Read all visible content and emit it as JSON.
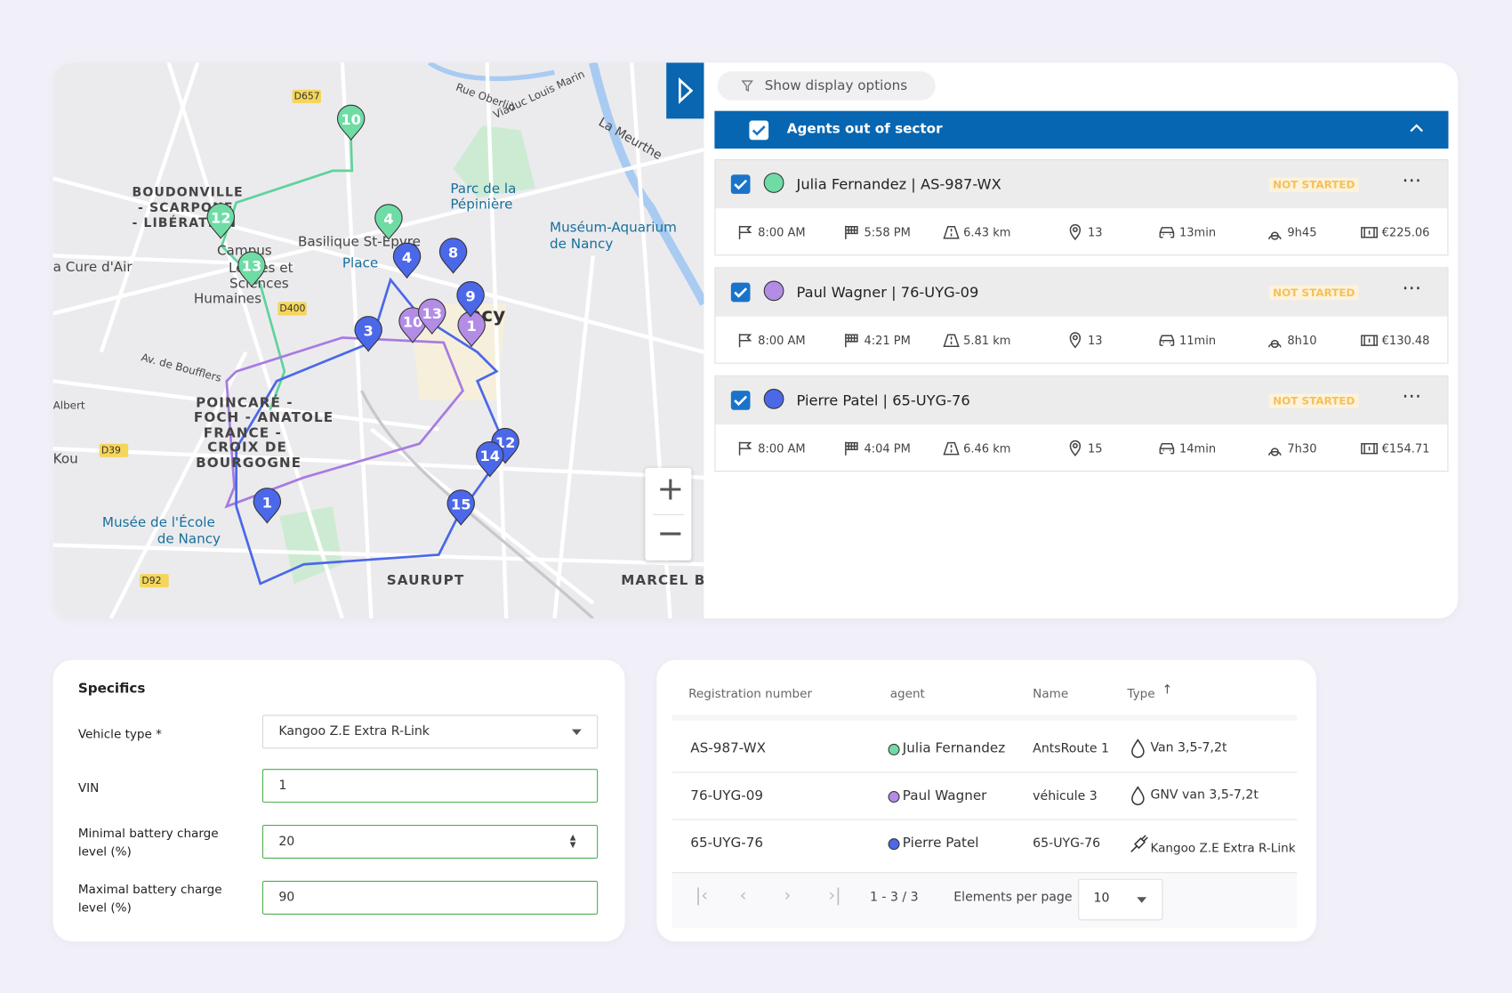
{
  "map": {
    "labels": [
      "BOUDONVILLE",
      "- SCARPONE",
      "- LIBÉRATION",
      "Parc de la",
      "Pépinière",
      "Muséum-Aquarium",
      "de Nancy",
      "Basilique St-Epvre",
      "Place",
      "a Cure d'Air",
      "Campus",
      "Lettres et",
      "Sciences",
      "Humaines",
      "ncy",
      "POINCARÉ -",
      "FOCH - ANATOLE",
      "FRANCE -",
      "CROIX DE",
      "BOURGOGNE",
      "Musée de l'École",
      "de Nancy",
      "SAURUPT",
      "MARCEL B",
      "Av. de Boufflers",
      "Rue Oberlin",
      "Viaduc Louis Marin",
      "La Meurthe",
      "D657",
      "D400",
      "D39",
      "D92",
      "Albert",
      "Kou"
    ],
    "markers": [
      "10",
      "12",
      "13",
      "4",
      "10",
      "13",
      "1",
      "4",
      "8",
      "9",
      "3",
      "12",
      "14",
      "15",
      "1"
    ],
    "zoom_in": "+",
    "zoom_out": "−"
  },
  "panel": {
    "display_options": "Show display options",
    "group": "Agents out of sector",
    "agents": [
      {
        "name": "Julia Fernandez | AS-987-WX",
        "color": "#6fdca5",
        "status": "NOT STARTED",
        "start": "8:00 AM",
        "end": "5:58 PM",
        "distance": "6.43 km",
        "stops": "13",
        "drive": "13min",
        "duration": "9h45",
        "cost": "€225.06"
      },
      {
        "name": "Paul Wagner | 76-UYG-09",
        "color": "#b38ce6",
        "status": "NOT STARTED",
        "start": "8:00 AM",
        "end": "4:21 PM",
        "distance": "5.81 km",
        "stops": "13",
        "drive": "11min",
        "duration": "8h10",
        "cost": "€130.48"
      },
      {
        "name": "Pierre Patel | 65-UYG-76",
        "color": "#4b68e8",
        "status": "NOT STARTED",
        "start": "8:00 AM",
        "end": "4:04 PM",
        "distance": "6.46 km",
        "stops": "15",
        "drive": "14min",
        "duration": "7h30",
        "cost": "€154.71"
      }
    ]
  },
  "specifics": {
    "title": "Specifics",
    "fields": [
      {
        "label": "Vehicle type *",
        "value": "Kangoo Z.E Extra R-Link"
      },
      {
        "label": "VIN",
        "value": "1"
      },
      {
        "label": "Minimal battery charge level (%)",
        "value": "20"
      },
      {
        "label": "Maximal battery charge level (%)",
        "value": "90"
      }
    ]
  },
  "table": {
    "headers": [
      "Registration number",
      "agent",
      "Name",
      "Type"
    ],
    "rows": [
      {
        "registration": "AS-987-WX",
        "agent": "Julia Fernandez",
        "color": "#6fdca5",
        "name": "AntsRoute 1",
        "type": "Van 3,5-7,2t"
      },
      {
        "registration": "76-UYG-09",
        "agent": "Paul Wagner",
        "color": "#b38ce6",
        "name": "véhicule 3",
        "type": "GNV van 3,5-7,2t"
      },
      {
        "registration": "65-UYG-76",
        "agent": "Pierre Patel",
        "color": "#4b68e8",
        "name": "65-UYG-76",
        "type": "Kangoo Z.E Extra R-Link"
      }
    ],
    "range": "1 - 3 / 3",
    "per_page_label": "Elements per page",
    "per_page": "10"
  }
}
